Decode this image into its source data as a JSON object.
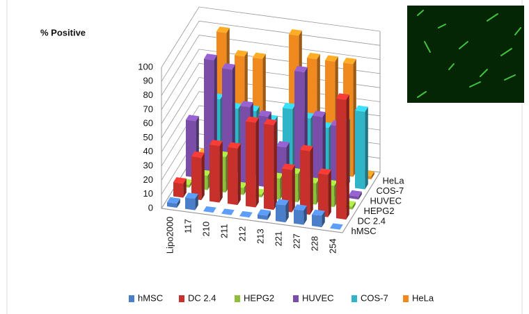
{
  "chart_data": {
    "type": "bar3d",
    "title": "% Positive",
    "categories": [
      "Lipo2000",
      "117",
      "210",
      "211",
      "212",
      "213",
      "221",
      "227",
      "228",
      "254"
    ],
    "ylim": [
      0,
      100
    ],
    "yticks": [
      0,
      10,
      20,
      30,
      40,
      50,
      60,
      70,
      80,
      90,
      100
    ],
    "grid": true,
    "series": [
      {
        "name": "hMSC",
        "color": "#4a7ec8",
        "values": [
          3,
          8,
          0,
          0,
          0,
          3,
          12,
          10,
          8,
          0
        ]
      },
      {
        "name": "DC 2.4",
        "color": "#c8302c",
        "values": [
          10,
          30,
          40,
          40,
          60,
          60,
          30,
          45,
          30,
          85
        ]
      },
      {
        "name": "HEPG2",
        "color": "#8fbf3a",
        "values": [
          2,
          10,
          25,
          5,
          2,
          15,
          20,
          15,
          15,
          2
        ]
      },
      {
        "name": "HUVEC",
        "color": "#7a4ea8",
        "values": [
          40,
          85,
          80,
          55,
          50,
          30,
          85,
          55,
          50,
          2
        ]
      },
      {
        "name": "COS-7",
        "color": "#2fb4c8",
        "values": [
          2,
          50,
          45,
          45,
          40,
          50,
          45,
          40,
          45,
          55
        ]
      },
      {
        "name": "HeLa",
        "color": "#f08a1e",
        "values": [
          2,
          90,
          75,
          75,
          2,
          95,
          80,
          80,
          80,
          2
        ]
      }
    ]
  }
}
